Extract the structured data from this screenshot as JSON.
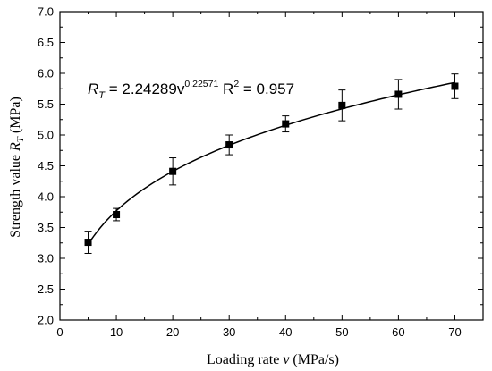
{
  "chart_data": {
    "type": "scatter",
    "xlabel": "Loading rate v (MPa/s)",
    "ylabel": "Strength value R_T (MPa)",
    "xlim": [
      0,
      75
    ],
    "ylim": [
      2.0,
      7.0
    ],
    "x_ticks": [
      0,
      10,
      20,
      30,
      40,
      50,
      60,
      70
    ],
    "y_ticks": [
      2.0,
      2.5,
      3.0,
      3.5,
      4.0,
      4.5,
      5.0,
      5.5,
      6.0,
      6.5,
      7.0
    ],
    "x_tick_labels": [
      "0",
      "10",
      "20",
      "30",
      "40",
      "50",
      "60",
      "70"
    ],
    "y_tick_labels": [
      "2.0",
      "2.5",
      "3.0",
      "3.5",
      "4.0",
      "4.5",
      "5.0",
      "5.5",
      "6.0",
      "6.5",
      "7.0"
    ],
    "series": [
      {
        "x": [
          5,
          10,
          20,
          30,
          40,
          50,
          60,
          70
        ],
        "y": [
          3.26,
          3.71,
          4.41,
          4.84,
          5.18,
          5.48,
          5.66,
          5.79
        ],
        "error": [
          0.18,
          0.1,
          0.22,
          0.16,
          0.13,
          0.25,
          0.24,
          0.2
        ]
      }
    ],
    "fit": {
      "type": "power",
      "a": 2.24289,
      "b": 0.22571,
      "x_range": [
        5,
        70
      ]
    },
    "annotation": {
      "lhs_main": "R",
      "lhs_sub": "T",
      "rhs_main": " = 2.24289v",
      "rhs_exp": "0.22571",
      "r2_main": " R",
      "r2_exp": "2",
      "r2_value": " = 0.957"
    },
    "grid": false,
    "legend": "none"
  },
  "labels": {
    "xlabel_prefix": "Loading rate ",
    "xlabel_var": "v",
    "xlabel_suffix": " (MPa/s)",
    "ylabel_prefix": "Strength value ",
    "ylabel_var": "R",
    "ylabel_sub": "T",
    "ylabel_suffix": " (MPa)"
  }
}
